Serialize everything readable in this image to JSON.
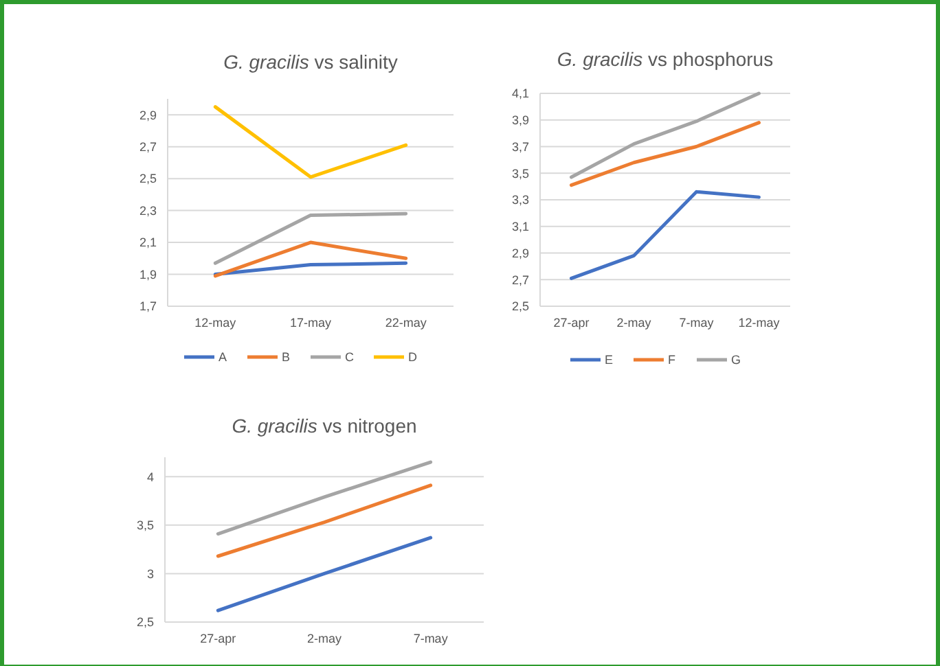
{
  "chart_data": [
    {
      "type": "line",
      "title": "G. gracilis vs salinity",
      "categories": [
        "12-may",
        "17-may",
        "22-may"
      ],
      "ylim": [
        1.7,
        3.0
      ],
      "yticks": [
        {
          "value": 1.7,
          "label": "1,7"
        },
        {
          "value": 1.9,
          "label": "1,9"
        },
        {
          "value": 2.1,
          "label": "2,1"
        },
        {
          "value": 2.3,
          "label": "2,3"
        },
        {
          "value": 2.5,
          "label": "2,5"
        },
        {
          "value": 2.7,
          "label": "2,7"
        },
        {
          "value": 2.9,
          "label": "2,9"
        }
      ],
      "grid": "y",
      "legend": "bottom",
      "series": [
        {
          "name": "A",
          "color": "#4472c4",
          "values": [
            1.9,
            1.96,
            1.97
          ]
        },
        {
          "name": "B",
          "color": "#ed7d31",
          "values": [
            1.89,
            2.1,
            2.0
          ]
        },
        {
          "name": "C",
          "color": "#a5a5a5",
          "values": [
            1.97,
            2.27,
            2.28
          ]
        },
        {
          "name": "D",
          "color": "#ffc000",
          "values": [
            2.95,
            2.51,
            2.71
          ]
        }
      ]
    },
    {
      "type": "line",
      "title": "G. gracilis vs phosphorus",
      "categories": [
        "27-apr",
        "2-may",
        "7-may",
        "12-may"
      ],
      "ylim": [
        2.5,
        4.1
      ],
      "yticks": [
        {
          "value": 2.5,
          "label": "2,5"
        },
        {
          "value": 2.7,
          "label": "2,7"
        },
        {
          "value": 2.9,
          "label": "2,9"
        },
        {
          "value": 3.1,
          "label": "3,1"
        },
        {
          "value": 3.3,
          "label": "3,3"
        },
        {
          "value": 3.5,
          "label": "3,5"
        },
        {
          "value": 3.7,
          "label": "3,7"
        },
        {
          "value": 3.9,
          "label": "3,9"
        },
        {
          "value": 4.1,
          "label": "4,1"
        }
      ],
      "grid": "y",
      "legend": "bottom",
      "series": [
        {
          "name": "E",
          "color": "#4472c4",
          "values": [
            2.71,
            2.88,
            3.36,
            3.32
          ]
        },
        {
          "name": "F",
          "color": "#ed7d31",
          "values": [
            3.41,
            3.58,
            3.7,
            3.88
          ]
        },
        {
          "name": "G",
          "color": "#a5a5a5",
          "values": [
            3.47,
            3.72,
            3.89,
            4.1
          ]
        }
      ]
    },
    {
      "type": "line",
      "title": "G. gracilis vs nitrogen",
      "categories": [
        "27-apr",
        "2-may",
        "7-may"
      ],
      "ylim": [
        2.5,
        4.2
      ],
      "yticks": [
        {
          "value": 2.5,
          "label": "2,5"
        },
        3,
        {
          "value": 3.5,
          "label": "3,5"
        },
        4
      ],
      "grid": "y",
      "series": [
        {
          "color": "#4472c4",
          "values": [
            2.62,
            3.0,
            3.37
          ]
        },
        {
          "color": "#ed7d31",
          "values": [
            3.18,
            3.53,
            3.91
          ]
        },
        {
          "color": "#a5a5a5",
          "values": [
            3.41,
            3.79,
            4.15
          ]
        }
      ]
    }
  ]
}
